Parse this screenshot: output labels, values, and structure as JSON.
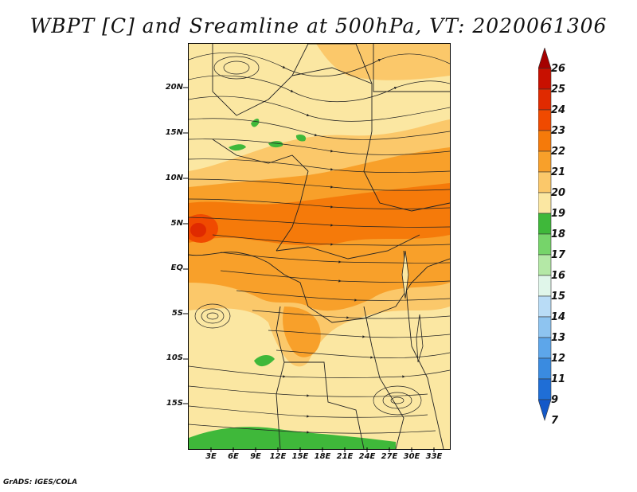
{
  "title": "WBPT [C] and Sreamline at 500hPa, VT: 2020061306",
  "footer": "GrADS: IGES/COLA",
  "map": {
    "lat_labels": [
      "20N",
      "15N",
      "10N",
      "5N",
      "EQ",
      "5S",
      "10S",
      "15S"
    ],
    "lon_labels": [
      "3E",
      "6E",
      "9E",
      "12E",
      "15E",
      "18E",
      "21E",
      "24E",
      "27E",
      "30E",
      "33E"
    ]
  },
  "colorbar": {
    "labels": [
      "26",
      "25",
      "24",
      "23",
      "22",
      "21",
      "20",
      "19",
      "18",
      "17",
      "16",
      "15",
      "14",
      "13",
      "12",
      "11",
      "9",
      "7"
    ],
    "colors": [
      "#a50000",
      "#c81000",
      "#e02a00",
      "#f04a00",
      "#f57a0a",
      "#f8a02a",
      "#fbc86a",
      "#fbe7a2",
      "#3fb83a",
      "#76d46a",
      "#b4e8a6",
      "#e0f6ea",
      "#b9dcf6",
      "#8ec4f0",
      "#5da6ea",
      "#3a8be0",
      "#1f6ed6",
      "#1458c8"
    ]
  }
}
